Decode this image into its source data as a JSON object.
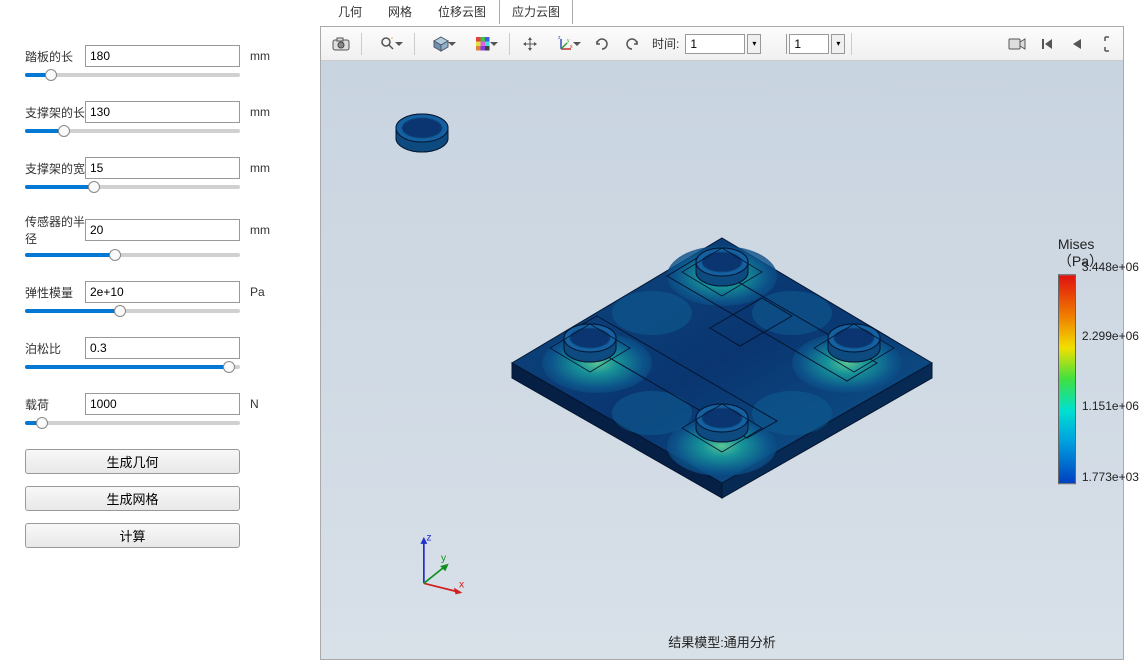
{
  "sidebar": {
    "params": [
      {
        "label": "踏板的长",
        "value": "180",
        "unit": "mm",
        "slider_pct": 12
      },
      {
        "label": "支撑架的长",
        "value": "130",
        "unit": "mm",
        "slider_pct": 18
      },
      {
        "label": "支撑架的宽",
        "value": "15",
        "unit": "mm",
        "slider_pct": 32
      },
      {
        "label": "传感器的半径",
        "value": "20",
        "unit": "mm",
        "slider_pct": 42
      },
      {
        "label": "弹性模量",
        "value": "2e+10",
        "unit": "Pa",
        "slider_pct": 44
      },
      {
        "label": "泊松比",
        "value": "0.3",
        "unit": "",
        "slider_pct": 95
      },
      {
        "label": "载荷",
        "value": "1000",
        "unit": "N",
        "slider_pct": 8
      }
    ],
    "buttons": [
      {
        "label": "生成几何"
      },
      {
        "label": "生成网格"
      },
      {
        "label": "计算"
      }
    ]
  },
  "tabs": [
    {
      "label": "几何",
      "active": false
    },
    {
      "label": "网格",
      "active": false
    },
    {
      "label": "位移云图",
      "active": false
    },
    {
      "label": "应力云图",
      "active": true
    }
  ],
  "toolbar": {
    "time_label": "时间:",
    "time_value": "1",
    "step_value": "1"
  },
  "viewer": {
    "caption": "结果模型:通用分析",
    "legend_title_1": "Mises",
    "legend_title_2": "（Pa）",
    "legend_stops": [
      {
        "label": "3.448e+06",
        "pct": 0
      },
      {
        "label": "2.299e+06",
        "pct": 33
      },
      {
        "label": "1.151e+06",
        "pct": 66
      },
      {
        "label": "1.773e+03",
        "pct": 100
      }
    ],
    "axis_labels": {
      "x": "x",
      "y": "y",
      "z": "z"
    },
    "plate": {
      "base_fill": "#0a3570",
      "base_dark": "#051f45",
      "gradient_mid": "#0d5a90",
      "gradient_light": "#1aa8a0",
      "gradient_highlight": "#6fe59a",
      "edge": "#041530"
    }
  }
}
